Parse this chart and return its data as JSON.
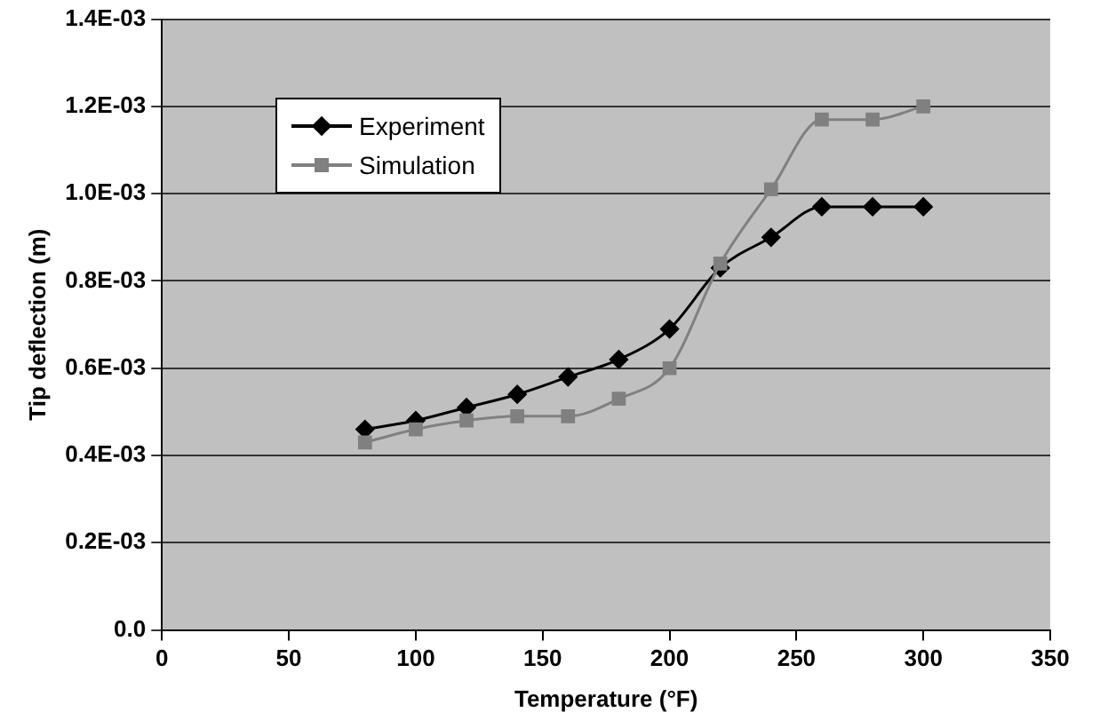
{
  "chart_data": {
    "type": "line",
    "xlabel": "Temperature (°F)",
    "ylabel": "Tip deflection (m)",
    "x": [
      80,
      100,
      120,
      140,
      160,
      180,
      200,
      220,
      240,
      260,
      280,
      300
    ],
    "series": [
      {
        "name": "Experiment",
        "color": "#000000",
        "marker": "diamond",
        "values": [
          0.00046,
          0.00048,
          0.00051,
          0.00054,
          0.00058,
          0.00062,
          0.00069,
          0.00083,
          0.0009,
          0.00097,
          0.00097,
          0.00097
        ]
      },
      {
        "name": "Simulation",
        "color": "#808080",
        "marker": "square",
        "values": [
          0.00043,
          0.00046,
          0.00048,
          0.00049,
          0.00049,
          0.00053,
          0.0006,
          0.00084,
          0.00101,
          0.00117,
          0.00117,
          0.0012
        ]
      }
    ],
    "xlim": [
      0,
      350
    ],
    "xticks": [
      0,
      50,
      100,
      150,
      200,
      250,
      300,
      350
    ],
    "ylim": [
      0,
      0.0014
    ],
    "yticks": [
      {
        "value": 0,
        "label": "0.0"
      },
      {
        "value": 0.0002,
        "label": "0.2E-03"
      },
      {
        "value": 0.0004,
        "label": "0.4E-03"
      },
      {
        "value": 0.0006,
        "label": "0.6E-03"
      },
      {
        "value": 0.0008,
        "label": "0.8E-03"
      },
      {
        "value": 0.001,
        "label": "1.0E-03"
      },
      {
        "value": 0.0012,
        "label": "1.2E-03"
      },
      {
        "value": 0.0014,
        "label": "1.4E-03"
      }
    ],
    "grid": "y",
    "legend": "top left"
  }
}
